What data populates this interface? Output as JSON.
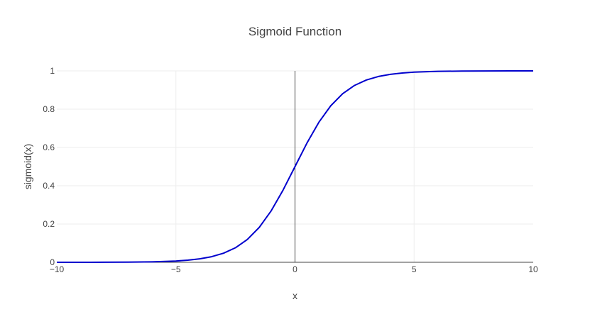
{
  "chart_data": {
    "type": "line",
    "title": "Sigmoid Function",
    "xlabel": "x",
    "ylabel": "sigmoid(x)",
    "xlim": [
      -10,
      10
    ],
    "ylim": [
      0,
      1
    ],
    "x_ticks": [
      -10,
      -5,
      0,
      5,
      10
    ],
    "x_tick_labels": [
      "−10",
      "−5",
      "0",
      "5",
      "10"
    ],
    "y_ticks": [
      0,
      0.2,
      0.4,
      0.6,
      0.8,
      1
    ],
    "y_tick_labels": [
      "0",
      "0.2",
      "0.4",
      "0.6",
      "0.8",
      "1"
    ],
    "grid": true,
    "series": [
      {
        "color": "#0000cd",
        "x": [
          -10,
          -9,
          -8,
          -7,
          -6,
          -5,
          -4.5,
          -4,
          -3.5,
          -3,
          -2.5,
          -2,
          -1.5,
          -1,
          -0.5,
          0,
          0.5,
          1,
          1.5,
          2,
          2.5,
          3,
          3.5,
          4,
          4.5,
          5,
          6,
          7,
          8,
          9,
          10
        ],
        "y": [
          4.54e-05,
          0.000123,
          0.000335,
          0.000911,
          0.00247,
          0.00669,
          0.011,
          0.018,
          0.0293,
          0.0474,
          0.0759,
          0.1192,
          0.1824,
          0.2689,
          0.3775,
          0.5,
          0.6225,
          0.7311,
          0.8176,
          0.8808,
          0.9241,
          0.9526,
          0.9707,
          0.982,
          0.989,
          0.9933,
          0.99753,
          0.99909,
          0.99966,
          0.99988,
          0.99995
        ]
      }
    ]
  }
}
